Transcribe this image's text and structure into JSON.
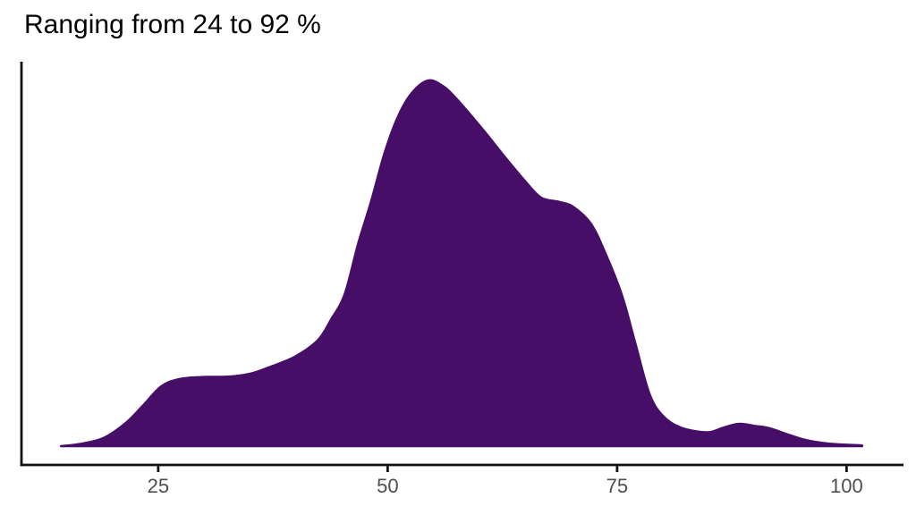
{
  "colors": {
    "background": "#ffffff",
    "density_fill": "#470E68",
    "axis_line": "#111111",
    "tick_label": "#4d4d4d",
    "title_text": "#000000"
  },
  "chart_data": {
    "type": "area",
    "subtype": "density",
    "title": "Ranging from 24 to 92 %",
    "xlabel": "",
    "ylabel": "",
    "xlim": [
      10.1,
      106.2
    ],
    "ylim": [
      0,
      1.05
    ],
    "grid": false,
    "legend": false,
    "x_ticks": [
      {
        "value": 25,
        "label": "25"
      },
      {
        "value": 50,
        "label": "50"
      },
      {
        "value": 75,
        "label": "75"
      },
      {
        "value": 100,
        "label": "100"
      }
    ],
    "density_curve": {
      "y_units": "normalized density (peak = 1)",
      "x": [
        14.4,
        16.5,
        19.0,
        21.4,
        23.3,
        25.3,
        27.2,
        29.7,
        32.6,
        35.0,
        37.0,
        39.9,
        42.4,
        43.8,
        45.3,
        46.8,
        48.2,
        49.7,
        51.1,
        52.6,
        54.4,
        56.0,
        57.5,
        60.4,
        62.8,
        64.8,
        66.7,
        68.7,
        70.2,
        72.1,
        73.6,
        75.5,
        77.0,
        78.5,
        79.9,
        81.9,
        84.8,
        86.5,
        88.2,
        90.1,
        91.6,
        93.6,
        95.5,
        98.0,
        100.0,
        101.7
      ],
      "y": [
        0.0,
        0.006,
        0.022,
        0.062,
        0.11,
        0.163,
        0.183,
        0.189,
        0.19,
        0.198,
        0.215,
        0.245,
        0.29,
        0.345,
        0.415,
        0.555,
        0.67,
        0.805,
        0.9,
        0.965,
        1.0,
        0.985,
        0.95,
        0.865,
        0.79,
        0.73,
        0.68,
        0.668,
        0.655,
        0.61,
        0.535,
        0.415,
        0.28,
        0.145,
        0.085,
        0.051,
        0.038,
        0.05,
        0.061,
        0.055,
        0.049,
        0.032,
        0.017,
        0.007,
        0.004,
        0.002
      ]
    }
  }
}
